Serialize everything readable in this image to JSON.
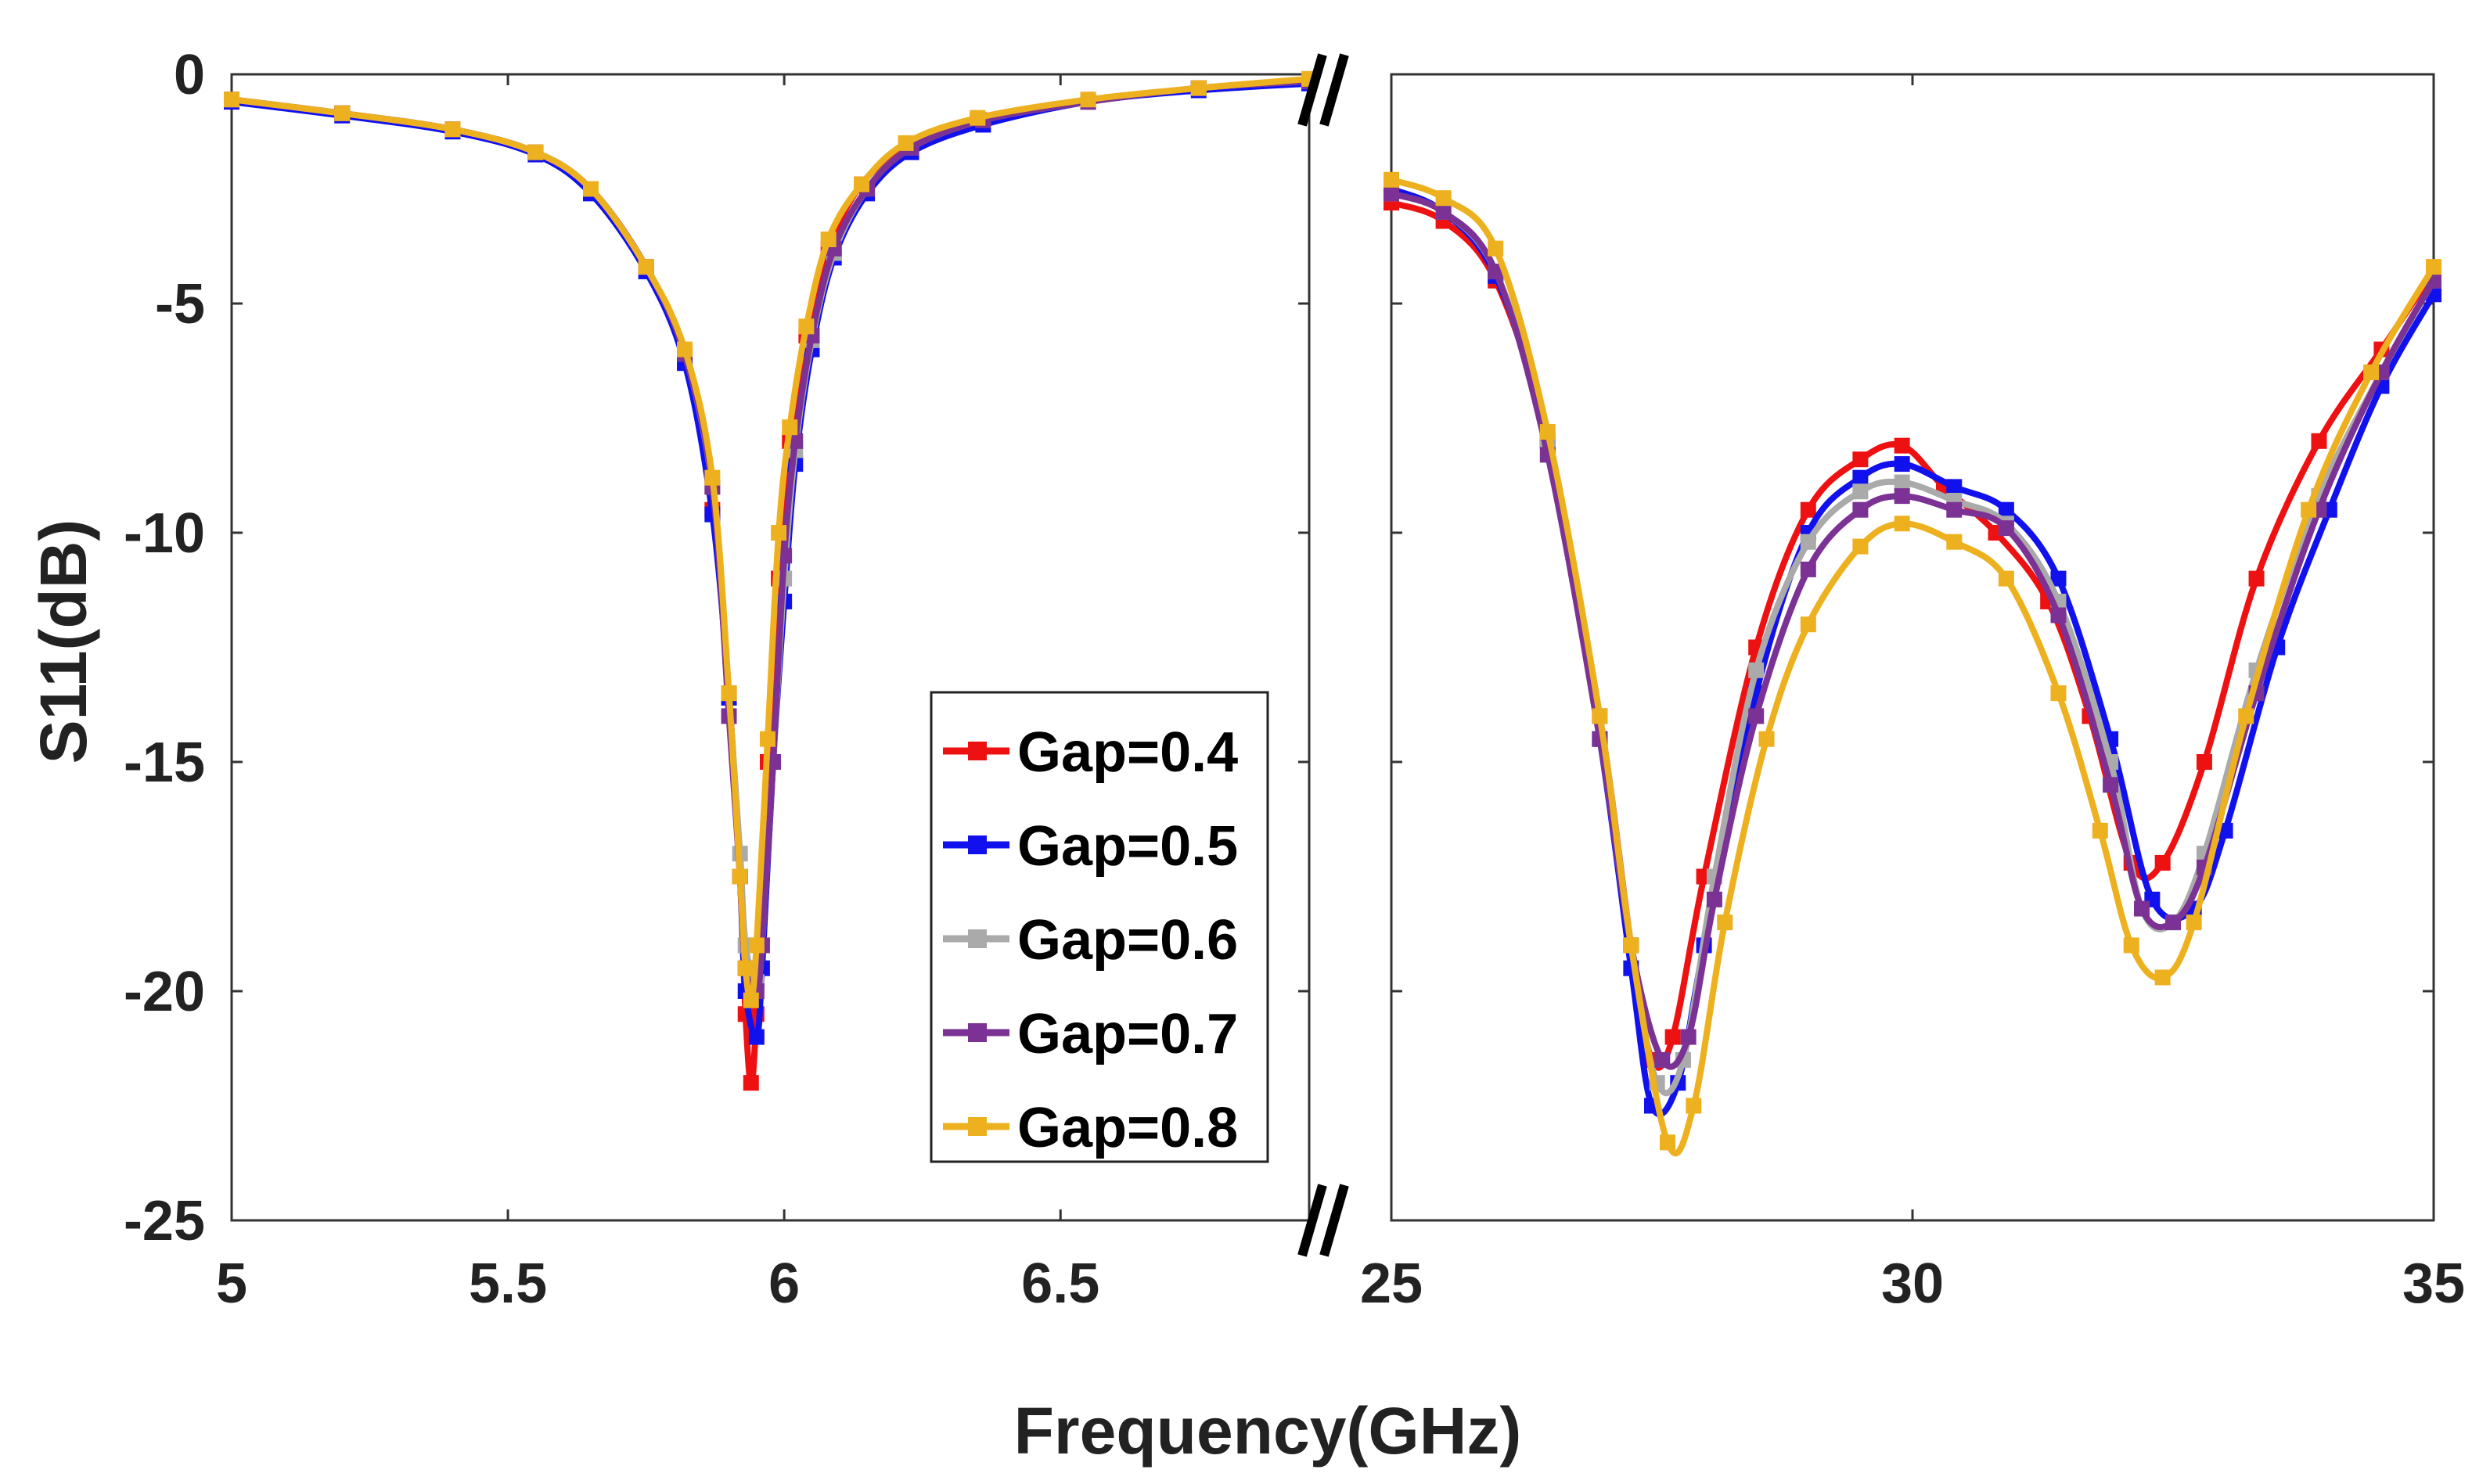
{
  "chart_data": {
    "type": "line",
    "xlabel": "Frequency(GHz)",
    "ylabel": "S11(dB)",
    "ylim": [
      -25,
      0
    ],
    "y_ticks": [
      "0",
      "-5",
      "-10",
      "-15",
      "-20",
      "-25"
    ],
    "y_tick_values": [
      0,
      -5,
      -10,
      -15,
      -20,
      -25
    ],
    "panels": [
      {
        "name": "low-band",
        "xlim": [
          5,
          6.95
        ],
        "x_ticks": [
          "5",
          "5.5",
          "6",
          "6.5"
        ],
        "x_tick_values": [
          5,
          5.5,
          6,
          6.5
        ]
      },
      {
        "name": "high-band",
        "xlim": [
          25,
          35
        ],
        "x_ticks": [
          "25",
          "30",
          "35"
        ],
        "x_tick_values": [
          25,
          30,
          35
        ]
      }
    ],
    "break_marker": "//",
    "legend_position": "center-right of left panel",
    "series": [
      {
        "name": "Gap=0.4",
        "color": "#ee1111",
        "low": [
          [
            5,
            -0.55
          ],
          [
            5.2,
            -0.85
          ],
          [
            5.4,
            -1.2
          ],
          [
            5.55,
            -1.7
          ],
          [
            5.65,
            -2.5
          ],
          [
            5.75,
            -4.2
          ],
          [
            5.82,
            -6.2
          ],
          [
            5.87,
            -9.5
          ],
          [
            5.9,
            -13.5
          ],
          [
            5.92,
            -17.5
          ],
          [
            5.93,
            -20.5
          ],
          [
            5.94,
            -22.0
          ],
          [
            5.95,
            -20.5
          ],
          [
            5.97,
            -15.0
          ],
          [
            5.99,
            -11.0
          ],
          [
            6.01,
            -8.0
          ],
          [
            6.04,
            -5.7
          ],
          [
            6.08,
            -3.8
          ],
          [
            6.14,
            -2.4
          ],
          [
            6.22,
            -1.6
          ],
          [
            6.35,
            -1.0
          ],
          [
            6.55,
            -0.6
          ],
          [
            6.75,
            -0.3
          ],
          [
            6.95,
            -0.15
          ]
        ],
        "high": [
          [
            25,
            -2.8
          ],
          [
            25.5,
            -3.2
          ],
          [
            26,
            -4.5
          ],
          [
            26.5,
            -8.0
          ],
          [
            27,
            -14.0
          ],
          [
            27.3,
            -19.0
          ],
          [
            27.5,
            -21.5
          ],
          [
            27.7,
            -21.0
          ],
          [
            28,
            -17.5
          ],
          [
            28.5,
            -12.5
          ],
          [
            29,
            -9.5
          ],
          [
            29.5,
            -8.4
          ],
          [
            29.9,
            -8.1
          ],
          [
            30.3,
            -9.0
          ],
          [
            30.8,
            -10.0
          ],
          [
            31.3,
            -11.5
          ],
          [
            31.7,
            -14.0
          ],
          [
            32.1,
            -17.2
          ],
          [
            32.4,
            -17.2
          ],
          [
            32.8,
            -15.0
          ],
          [
            33.3,
            -11.0
          ],
          [
            33.9,
            -8.0
          ],
          [
            34.5,
            -6.0
          ],
          [
            35,
            -4.3
          ]
        ]
      },
      {
        "name": "Gap=0.5",
        "color": "#1111ee",
        "low": [
          [
            5,
            -0.6
          ],
          [
            5.2,
            -0.9
          ],
          [
            5.4,
            -1.25
          ],
          [
            5.55,
            -1.75
          ],
          [
            5.65,
            -2.6
          ],
          [
            5.75,
            -4.3
          ],
          [
            5.82,
            -6.3
          ],
          [
            5.87,
            -9.6
          ],
          [
            5.9,
            -13.6
          ],
          [
            5.92,
            -17.5
          ],
          [
            5.93,
            -20.0
          ],
          [
            5.95,
            -21.0
          ],
          [
            5.96,
            -19.5
          ],
          [
            5.98,
            -15.0
          ],
          [
            6,
            -11.5
          ],
          [
            6.02,
            -8.5
          ],
          [
            6.05,
            -6.0
          ],
          [
            6.09,
            -4.0
          ],
          [
            6.15,
            -2.6
          ],
          [
            6.23,
            -1.7
          ],
          [
            6.36,
            -1.1
          ],
          [
            6.55,
            -0.6
          ],
          [
            6.75,
            -0.35
          ],
          [
            6.95,
            -0.2
          ]
        ],
        "high": [
          [
            25,
            -2.5
          ],
          [
            25.5,
            -3.0
          ],
          [
            26,
            -4.4
          ],
          [
            26.5,
            -8.0
          ],
          [
            27,
            -14.5
          ],
          [
            27.3,
            -19.5
          ],
          [
            27.5,
            -22.5
          ],
          [
            27.75,
            -22.0
          ],
          [
            28,
            -19.0
          ],
          [
            28.5,
            -13.5
          ],
          [
            29,
            -10.0
          ],
          [
            29.5,
            -8.8
          ],
          [
            29.9,
            -8.5
          ],
          [
            30.4,
            -9.0
          ],
          [
            30.9,
            -9.5
          ],
          [
            31.4,
            -11.0
          ],
          [
            31.9,
            -14.5
          ],
          [
            32.3,
            -18.0
          ],
          [
            32.7,
            -18.2
          ],
          [
            33,
            -16.5
          ],
          [
            33.5,
            -12.5
          ],
          [
            34,
            -9.5
          ],
          [
            34.5,
            -6.8
          ],
          [
            35,
            -4.8
          ]
        ]
      },
      {
        "name": "Gap=0.6",
        "color": "#aaaaaa",
        "low": [
          [
            5,
            -0.55
          ],
          [
            5.2,
            -0.85
          ],
          [
            5.4,
            -1.2
          ],
          [
            5.55,
            -1.7
          ],
          [
            5.65,
            -2.5
          ],
          [
            5.75,
            -4.2
          ],
          [
            5.82,
            -6.1
          ],
          [
            5.87,
            -9.0
          ],
          [
            5.9,
            -13.5
          ],
          [
            5.92,
            -17.0
          ],
          [
            5.93,
            -19.0
          ],
          [
            5.95,
            -19.8
          ],
          [
            5.96,
            -19.0
          ],
          [
            5.98,
            -15.0
          ],
          [
            6,
            -11.0
          ],
          [
            6.02,
            -8.2
          ],
          [
            6.05,
            -5.8
          ],
          [
            6.09,
            -3.9
          ],
          [
            6.15,
            -2.5
          ],
          [
            6.23,
            -1.6
          ],
          [
            6.36,
            -1.0
          ],
          [
            6.55,
            -0.6
          ],
          [
            6.75,
            -0.3
          ],
          [
            6.95,
            -0.15
          ]
        ],
        "high": [
          [
            25,
            -2.6
          ],
          [
            25.5,
            -3.0
          ],
          [
            26,
            -4.3
          ],
          [
            26.5,
            -8.0
          ],
          [
            27,
            -14.0
          ],
          [
            27.3,
            -19.0
          ],
          [
            27.55,
            -22.0
          ],
          [
            27.8,
            -21.5
          ],
          [
            28.1,
            -17.5
          ],
          [
            28.5,
            -13.0
          ],
          [
            29,
            -10.2
          ],
          [
            29.5,
            -9.1
          ],
          [
            29.9,
            -8.9
          ],
          [
            30.4,
            -9.3
          ],
          [
            30.9,
            -9.8
          ],
          [
            31.4,
            -11.5
          ],
          [
            31.9,
            -15.0
          ],
          [
            32.2,
            -18.2
          ],
          [
            32.5,
            -18.5
          ],
          [
            32.8,
            -17.0
          ],
          [
            33.3,
            -13.0
          ],
          [
            33.9,
            -9.2
          ],
          [
            34.5,
            -6.5
          ],
          [
            35,
            -4.5
          ]
        ]
      },
      {
        "name": "Gap=0.7",
        "color": "#7b3294",
        "low": [
          [
            5,
            -0.55
          ],
          [
            5.2,
            -0.85
          ],
          [
            5.4,
            -1.2
          ],
          [
            5.55,
            -1.7
          ],
          [
            5.65,
            -2.5
          ],
          [
            5.75,
            -4.2
          ],
          [
            5.82,
            -6.1
          ],
          [
            5.87,
            -9.0
          ],
          [
            5.9,
            -14.0
          ],
          [
            5.92,
            -17.5
          ],
          [
            5.93,
            -19.5
          ],
          [
            5.95,
            -20.0
          ],
          [
            5.96,
            -19.0
          ],
          [
            5.98,
            -15.0
          ],
          [
            6,
            -10.5
          ],
          [
            6.02,
            -8.0
          ],
          [
            6.05,
            -5.7
          ],
          [
            6.09,
            -3.8
          ],
          [
            6.15,
            -2.5
          ],
          [
            6.23,
            -1.6
          ],
          [
            6.36,
            -1.0
          ],
          [
            6.55,
            -0.6
          ],
          [
            6.75,
            -0.3
          ],
          [
            6.95,
            -0.15
          ]
        ],
        "high": [
          [
            25,
            -2.6
          ],
          [
            25.5,
            -3.0
          ],
          [
            26,
            -4.3
          ],
          [
            26.5,
            -8.3
          ],
          [
            27,
            -14.5
          ],
          [
            27.3,
            -19.0
          ],
          [
            27.6,
            -21.5
          ],
          [
            27.85,
            -21.0
          ],
          [
            28.1,
            -18.0
          ],
          [
            28.5,
            -14.0
          ],
          [
            29,
            -10.8
          ],
          [
            29.5,
            -9.5
          ],
          [
            29.9,
            -9.2
          ],
          [
            30.4,
            -9.5
          ],
          [
            30.9,
            -9.9
          ],
          [
            31.4,
            -11.8
          ],
          [
            31.9,
            -15.5
          ],
          [
            32.2,
            -18.2
          ],
          [
            32.5,
            -18.5
          ],
          [
            32.8,
            -17.3
          ],
          [
            33.3,
            -13.5
          ],
          [
            33.9,
            -9.5
          ],
          [
            34.5,
            -6.5
          ],
          [
            35,
            -4.5
          ]
        ]
      },
      {
        "name": "Gap=0.8",
        "color": "#edb120",
        "low": [
          [
            5,
            -0.55
          ],
          [
            5.2,
            -0.85
          ],
          [
            5.4,
            -1.2
          ],
          [
            5.55,
            -1.7
          ],
          [
            5.65,
            -2.5
          ],
          [
            5.75,
            -4.2
          ],
          [
            5.82,
            -6.0
          ],
          [
            5.87,
            -8.8
          ],
          [
            5.9,
            -13.5
          ],
          [
            5.92,
            -17.5
          ],
          [
            5.93,
            -19.5
          ],
          [
            5.94,
            -20.2
          ],
          [
            5.95,
            -19.0
          ],
          [
            5.97,
            -14.5
          ],
          [
            5.99,
            -10.0
          ],
          [
            6.01,
            -7.7
          ],
          [
            6.04,
            -5.5
          ],
          [
            6.08,
            -3.6
          ],
          [
            6.14,
            -2.4
          ],
          [
            6.22,
            -1.5
          ],
          [
            6.35,
            -0.95
          ],
          [
            6.55,
            -0.55
          ],
          [
            6.75,
            -0.3
          ],
          [
            6.95,
            -0.1
          ]
        ],
        "high": [
          [
            25,
            -2.3
          ],
          [
            25.5,
            -2.7
          ],
          [
            26,
            -3.8
          ],
          [
            26.5,
            -7.8
          ],
          [
            27,
            -14.0
          ],
          [
            27.3,
            -19.0
          ],
          [
            27.65,
            -23.3
          ],
          [
            27.9,
            -22.5
          ],
          [
            28.2,
            -18.5
          ],
          [
            28.6,
            -14.5
          ],
          [
            29,
            -12.0
          ],
          [
            29.5,
            -10.3
          ],
          [
            29.9,
            -9.8
          ],
          [
            30.4,
            -10.2
          ],
          [
            30.9,
            -11.0
          ],
          [
            31.4,
            -13.5
          ],
          [
            31.8,
            -16.5
          ],
          [
            32.1,
            -19.0
          ],
          [
            32.4,
            -19.7
          ],
          [
            32.7,
            -18.5
          ],
          [
            33.2,
            -14.0
          ],
          [
            33.8,
            -9.5
          ],
          [
            34.4,
            -6.5
          ],
          [
            35,
            -4.2
          ]
        ]
      }
    ]
  }
}
